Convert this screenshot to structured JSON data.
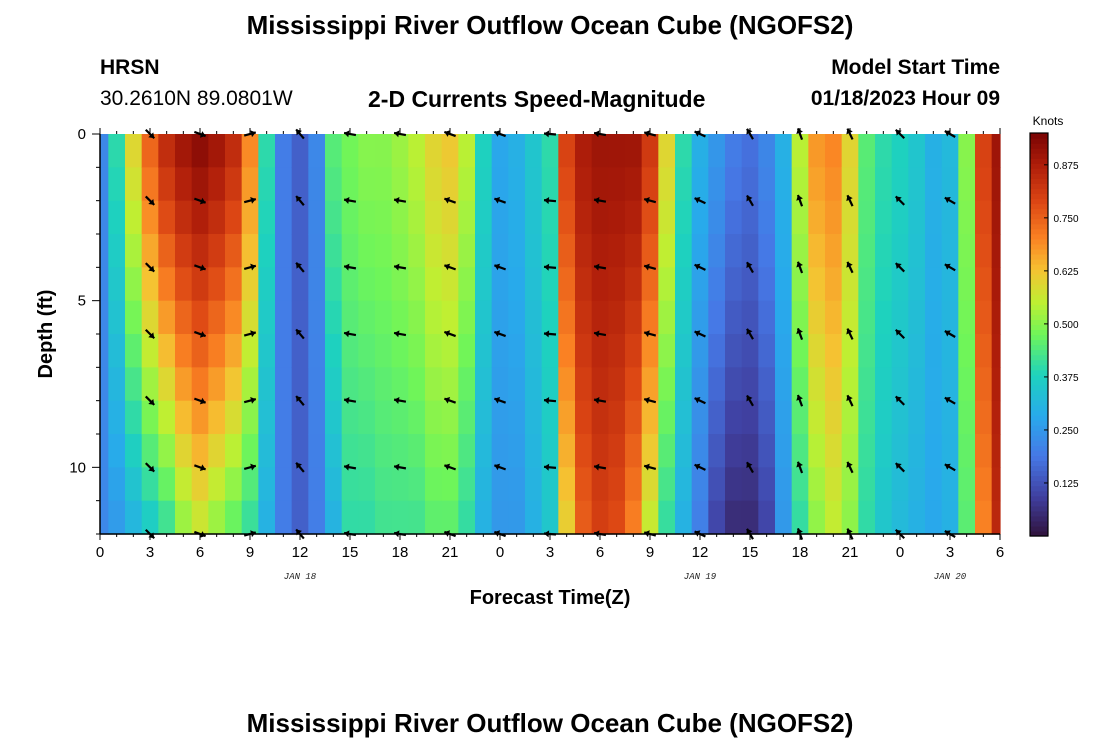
{
  "header": {
    "title": "Mississippi River Outflow Ocean Cube (NGOFS2)",
    "station": "HRSN",
    "coordinates": "30.2610N  89.0801W",
    "subtitle": "2-D Currents Speed-Magnitude",
    "model_start_label": "Model Start Time",
    "model_start_value": "01/18/2023 Hour 09"
  },
  "footer": {
    "title": "Mississippi River Outflow Ocean Cube (NGOFS2)"
  },
  "chart_data": {
    "type": "heatmap",
    "title": "2-D Currents Speed-Magnitude",
    "xlabel": "Forecast Time(Z)",
    "ylabel": "Depth (ft)",
    "x_hours": [
      0,
      54
    ],
    "y_range": [
      0,
      12
    ],
    "x_tick_labels": [
      "0",
      "3",
      "6",
      "9",
      "12",
      "15",
      "18",
      "21",
      "0",
      "3",
      "6",
      "9",
      "12",
      "15",
      "18",
      "21",
      "0",
      "3",
      "6"
    ],
    "y_tick_labels": [
      "0",
      "5",
      "10"
    ],
    "y_tick_values": [
      0,
      5,
      10
    ],
    "date_labels": [
      {
        "text": "JAN 18",
        "hour": 12
      },
      {
        "text": "JAN 19",
        "hour": 36
      },
      {
        "text": "JAN 20",
        "hour": 51
      }
    ],
    "colorbar": {
      "title": "Knots",
      "range": [
        0,
        0.95
      ],
      "ticks": [
        "0.125",
        "0.250",
        "0.375",
        "0.500",
        "0.625",
        "0.750",
        "0.875"
      ],
      "tick_values": [
        0.125,
        0.25,
        0.375,
        0.5,
        0.625,
        0.75,
        0.875
      ]
    },
    "speed_profile": {
      "hours": [
        0,
        1,
        2,
        3,
        4,
        5,
        6,
        7,
        8,
        9,
        10,
        11,
        12,
        13,
        14,
        15,
        16,
        17,
        18,
        19,
        20,
        21,
        22,
        23,
        24,
        25,
        26,
        27,
        28,
        29,
        30,
        31,
        32,
        33,
        34,
        35,
        36,
        37,
        38,
        39,
        40,
        41,
        42,
        43,
        44,
        45,
        46,
        47,
        48,
        49,
        50,
        51,
        52,
        53,
        54
      ],
      "surface": [
        0.22,
        0.4,
        0.6,
        0.75,
        0.85,
        0.9,
        0.93,
        0.9,
        0.85,
        0.7,
        0.4,
        0.2,
        0.15,
        0.22,
        0.45,
        0.48,
        0.5,
        0.5,
        0.52,
        0.55,
        0.6,
        0.62,
        0.55,
        0.38,
        0.28,
        0.3,
        0.35,
        0.4,
        0.8,
        0.88,
        0.9,
        0.9,
        0.9,
        0.82,
        0.6,
        0.4,
        0.3,
        0.25,
        0.2,
        0.18,
        0.22,
        0.3,
        0.55,
        0.68,
        0.7,
        0.6,
        0.45,
        0.4,
        0.38,
        0.35,
        0.3,
        0.32,
        0.5,
        0.8,
        0.9
      ],
      "bottom": [
        0.22,
        0.25,
        0.3,
        0.35,
        0.4,
        0.5,
        0.55,
        0.5,
        0.45,
        0.4,
        0.3,
        0.2,
        0.15,
        0.2,
        0.3,
        0.4,
        0.4,
        0.42,
        0.42,
        0.42,
        0.45,
        0.45,
        0.4,
        0.3,
        0.25,
        0.25,
        0.3,
        0.35,
        0.6,
        0.75,
        0.8,
        0.78,
        0.7,
        0.55,
        0.4,
        0.3,
        0.2,
        0.1,
        0.05,
        0.05,
        0.1,
        0.25,
        0.4,
        0.5,
        0.55,
        0.5,
        0.4,
        0.35,
        0.32,
        0.3,
        0.28,
        0.3,
        0.45,
        0.7,
        0.85
      ]
    },
    "vectors": {
      "hours": [
        3,
        6,
        9,
        12,
        15,
        18,
        21,
        24,
        27,
        30,
        33,
        36,
        39,
        42,
        45,
        48,
        51
      ],
      "depths": [
        0,
        2,
        4,
        6,
        8,
        10,
        12
      ],
      "angles_deg": [
        -45,
        -20,
        15,
        130,
        170,
        170,
        160,
        160,
        175,
        170,
        165,
        155,
        120,
        110,
        115,
        135,
        150
      ]
    }
  }
}
